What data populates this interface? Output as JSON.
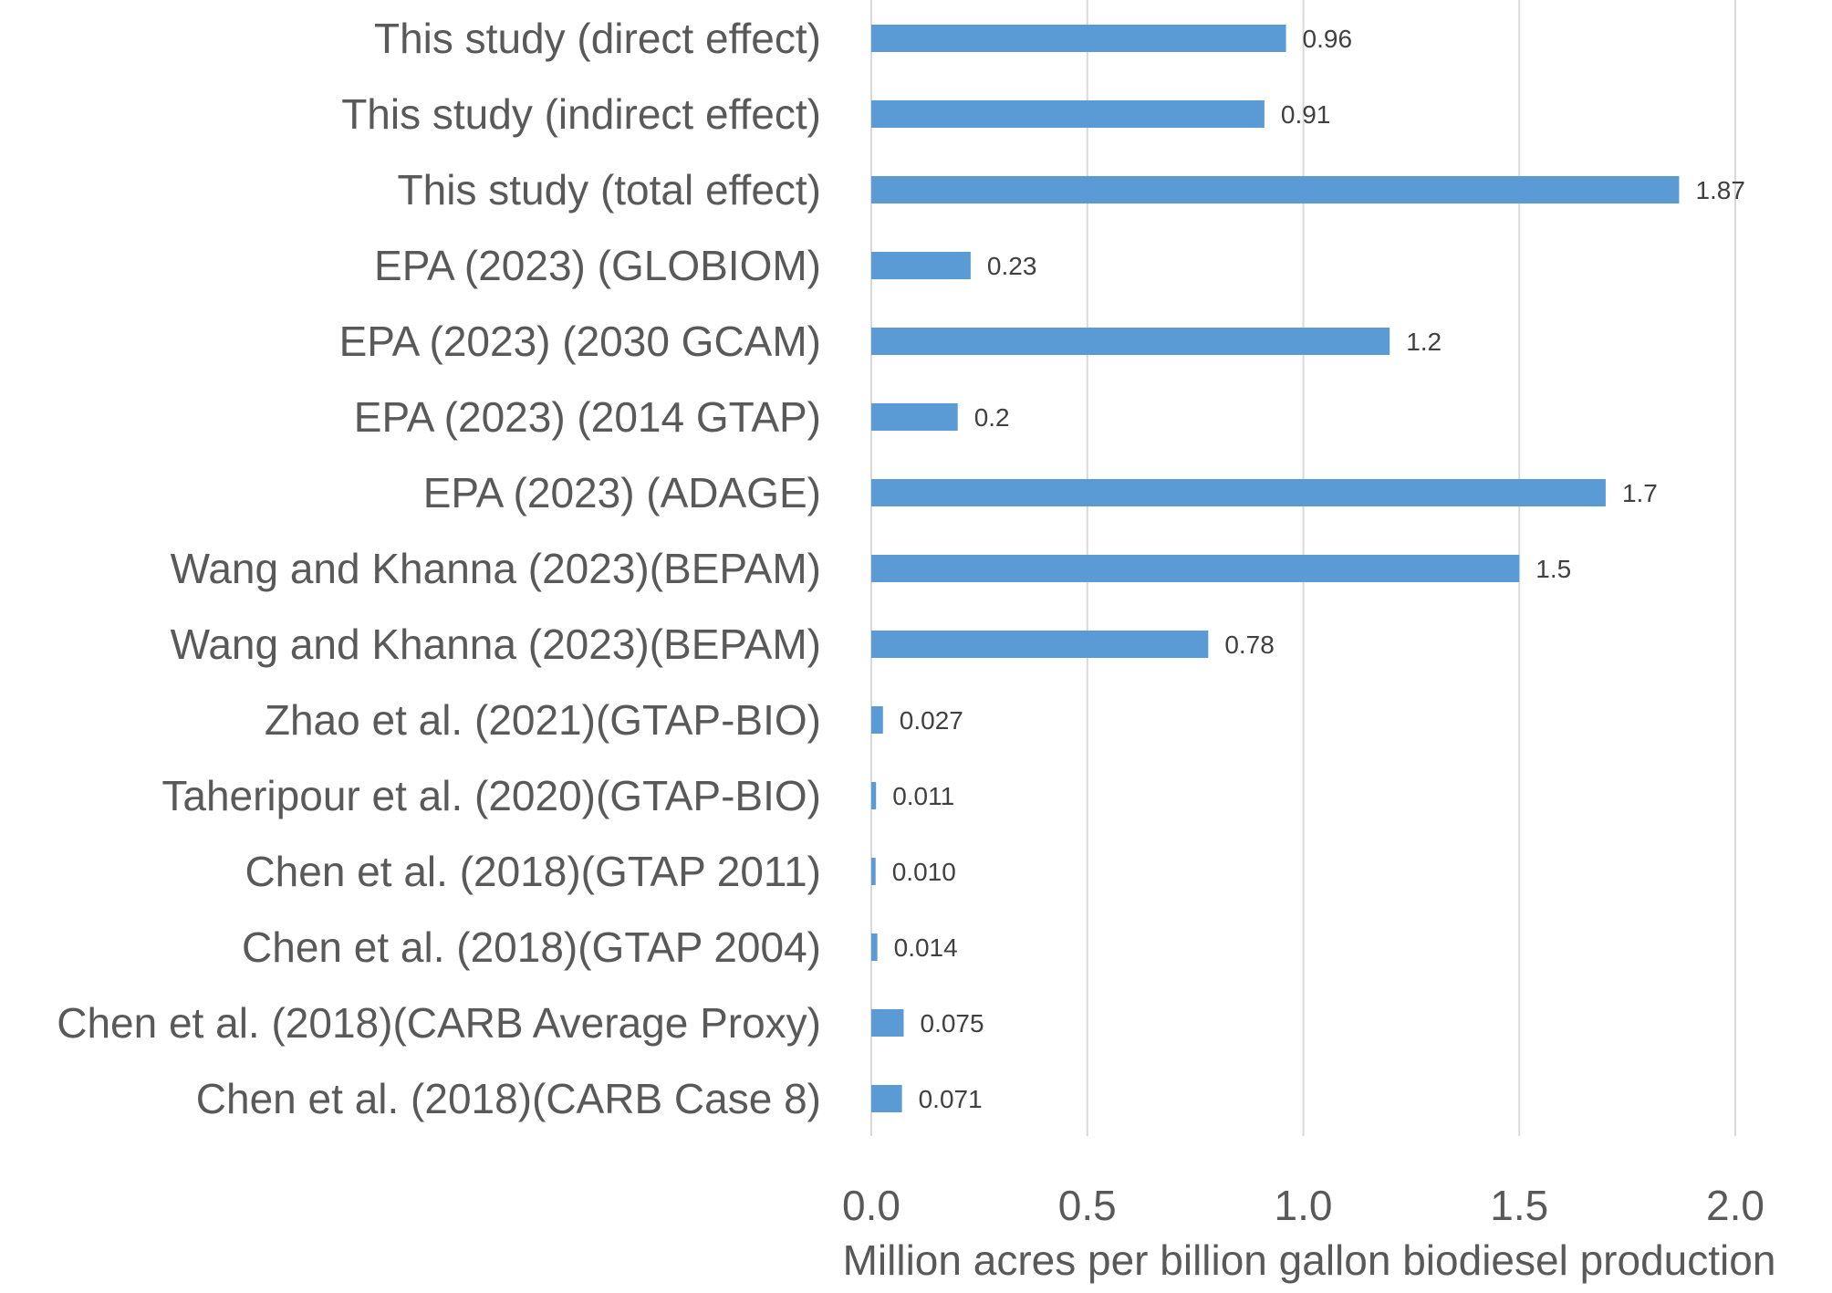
{
  "chart_data": {
    "type": "bar",
    "orientation": "horizontal",
    "categories": [
      "This study (direct effect)",
      "This study (indirect effect)",
      "This study (total effect)",
      "EPA (2023) (GLOBIOM)",
      "EPA (2023) (2030 GCAM)",
      "EPA (2023) (2014 GTAP)",
      "EPA (2023) (ADAGE)",
      "Wang and Khanna (2023)(BEPAM)",
      "Wang and Khanna (2023)(BEPAM)",
      "Zhao et al. (2021)(GTAP-BIO)",
      "Taheripour et al. (2020)(GTAP-BIO)",
      "Chen et al. (2018)(GTAP 2011)",
      "Chen et al. (2018)(GTAP 2004)",
      "Chen et al. (2018)(CARB Average Proxy)",
      "Chen et al. (2018)(CARB Case 8)"
    ],
    "values": [
      0.96,
      0.91,
      1.87,
      0.23,
      1.2,
      0.2,
      1.7,
      1.5,
      0.78,
      0.027,
      0.011,
      0.01,
      0.014,
      0.075,
      0.071
    ],
    "data_labels": [
      "0.96",
      "0.91",
      "1.87",
      "0.23",
      "1.2",
      "0.2",
      "1.7",
      "1.5",
      "0.78",
      "0.027",
      "0.011",
      "0.010",
      "0.014",
      "0.075",
      "0.071"
    ],
    "xlabel": "Million acres per billion gallon biodiesel production",
    "ylabel": "",
    "title": "",
    "xlim": [
      0,
      2.0
    ],
    "xticks": [
      "0.0",
      "0.5",
      "1.0",
      "1.5",
      "2.0"
    ],
    "xtick_values": [
      0,
      0.5,
      1.0,
      1.5,
      2.0
    ],
    "grid": "vertical",
    "legend": "none",
    "bar_color": "#5b9bd5",
    "grid_color": "#d9d9d9",
    "text_color": "#595959"
  }
}
